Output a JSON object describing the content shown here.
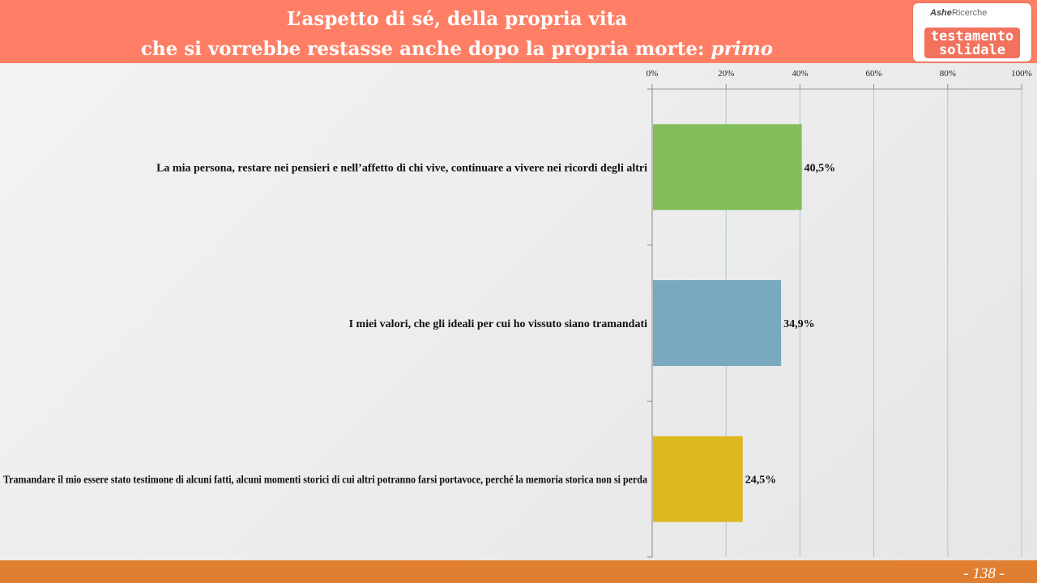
{
  "header": {
    "title_line1": "L’aspetto di sé, della propria vita",
    "title_line2": "che si vorrebbe restasse anche dopo la propria morte:",
    "title_italic": "primo"
  },
  "logo": {
    "brand_part1": "Ashe",
    "brand_part2": "Ricerche",
    "word1": "testamento",
    "word2": "solidale"
  },
  "footer": {
    "page_number": "- 138 -"
  },
  "chart_data": {
    "type": "bar",
    "orientation": "horizontal",
    "categories": [
      "La mia persona, restare nei pensieri e nell’affetto di chi vive, continuare a vivere nei ricordi degli altri",
      "I miei valori, che gli ideali per cui ho vissuto siano tramandati",
      "Tramandare il mio essere stato testimone di alcuni fatti, alcuni momenti storici di cui altri potranno farsi portavoce, perché la memoria storica non si perda"
    ],
    "values": [
      40.5,
      34.9,
      24.5
    ],
    "value_labels": [
      "40,5%",
      "34,9%",
      "24,5%"
    ],
    "colors": [
      "#82bd5a",
      "#79a9c0",
      "#dcb81e"
    ],
    "xlim": [
      0,
      100
    ],
    "x_ticks": [
      0,
      20,
      40,
      60,
      80,
      100
    ],
    "x_tick_labels": [
      "0%",
      "20%",
      "40%",
      "60%",
      "80%",
      "100%"
    ],
    "x_axis_position": "top",
    "grid": true,
    "legend": "none"
  }
}
